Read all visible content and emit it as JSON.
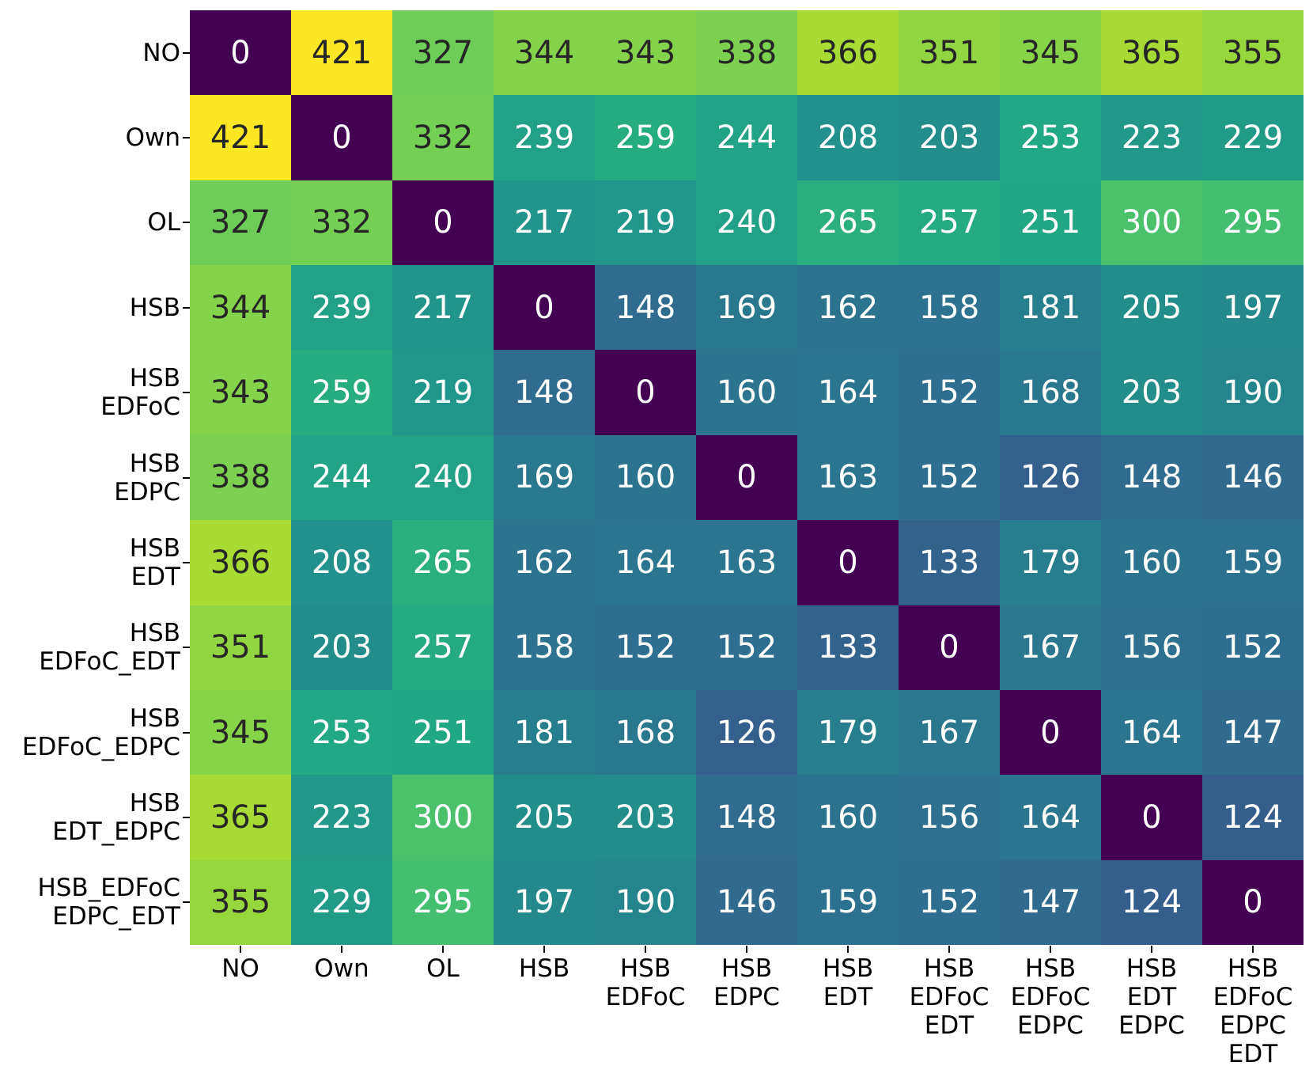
{
  "chart_data": {
    "type": "heatmap",
    "title": "",
    "xlabel": "",
    "ylabel": "",
    "colormap": "viridis",
    "vmin": 0,
    "vmax": 421,
    "grid": false,
    "legend_position": "none",
    "categories": [
      "NO",
      "Own",
      "OL",
      "HSB",
      "HSB EDFoC",
      "HSB EDPC",
      "HSB EDT",
      "HSB EDFoC_EDT",
      "HSB EDFoC_EDPC",
      "HSB EDT_EDPC",
      "HSB_EDFoC EDPC_EDT"
    ],
    "y_tick_labels": [
      [
        "NO"
      ],
      [
        "Own"
      ],
      [
        "OL"
      ],
      [
        "HSB"
      ],
      [
        "HSB",
        "EDFoC"
      ],
      [
        "HSB",
        "EDPC"
      ],
      [
        "HSB",
        "EDT"
      ],
      [
        "HSB",
        "EDFoC_EDT"
      ],
      [
        "HSB",
        "EDFoC_EDPC"
      ],
      [
        "HSB",
        "EDT_EDPC"
      ],
      [
        "HSB_EDFoC",
        "EDPC_EDT"
      ]
    ],
    "x_tick_labels": [
      [
        "NO"
      ],
      [
        "Own"
      ],
      [
        "OL"
      ],
      [
        "HSB"
      ],
      [
        "HSB",
        "EDFoC"
      ],
      [
        "HSB",
        "EDPC"
      ],
      [
        "HSB",
        "EDT"
      ],
      [
        "HSB",
        "EDFoC",
        "EDT"
      ],
      [
        "HSB",
        "EDFoC",
        "EDPC"
      ],
      [
        "HSB",
        "EDT",
        "EDPC"
      ],
      [
        "HSB",
        "EDFoC",
        "EDPC",
        "EDT"
      ]
    ],
    "matrix": [
      [
        0,
        421,
        327,
        344,
        343,
        338,
        366,
        351,
        345,
        365,
        355
      ],
      [
        421,
        0,
        332,
        239,
        259,
        244,
        208,
        203,
        253,
        223,
        229
      ],
      [
        327,
        332,
        0,
        217,
        219,
        240,
        265,
        257,
        251,
        300,
        295
      ],
      [
        344,
        239,
        217,
        0,
        148,
        169,
        162,
        158,
        181,
        205,
        197
      ],
      [
        343,
        259,
        219,
        148,
        0,
        160,
        164,
        152,
        168,
        203,
        190
      ],
      [
        338,
        244,
        240,
        169,
        160,
        0,
        163,
        152,
        126,
        148,
        146
      ],
      [
        366,
        208,
        265,
        162,
        164,
        163,
        0,
        133,
        179,
        160,
        159
      ],
      [
        351,
        203,
        257,
        158,
        152,
        152,
        133,
        0,
        167,
        156,
        152
      ],
      [
        345,
        253,
        251,
        181,
        168,
        126,
        179,
        167,
        0,
        164,
        147
      ],
      [
        365,
        223,
        300,
        205,
        203,
        148,
        160,
        156,
        164,
        0,
        124
      ],
      [
        355,
        229,
        295,
        197,
        190,
        146,
        159,
        152,
        147,
        124,
        0
      ]
    ],
    "colors": {
      "background": "#ffffff",
      "annotation_dark": "#262626",
      "annotation_light": "#ffffff",
      "tick": "#000000",
      "viridis_stops": [
        "#440154",
        "#482475",
        "#414487",
        "#355f8d",
        "#2a788e",
        "#21918c",
        "#22a884",
        "#44bf70",
        "#7ad151",
        "#bddf26",
        "#fde725"
      ]
    }
  }
}
